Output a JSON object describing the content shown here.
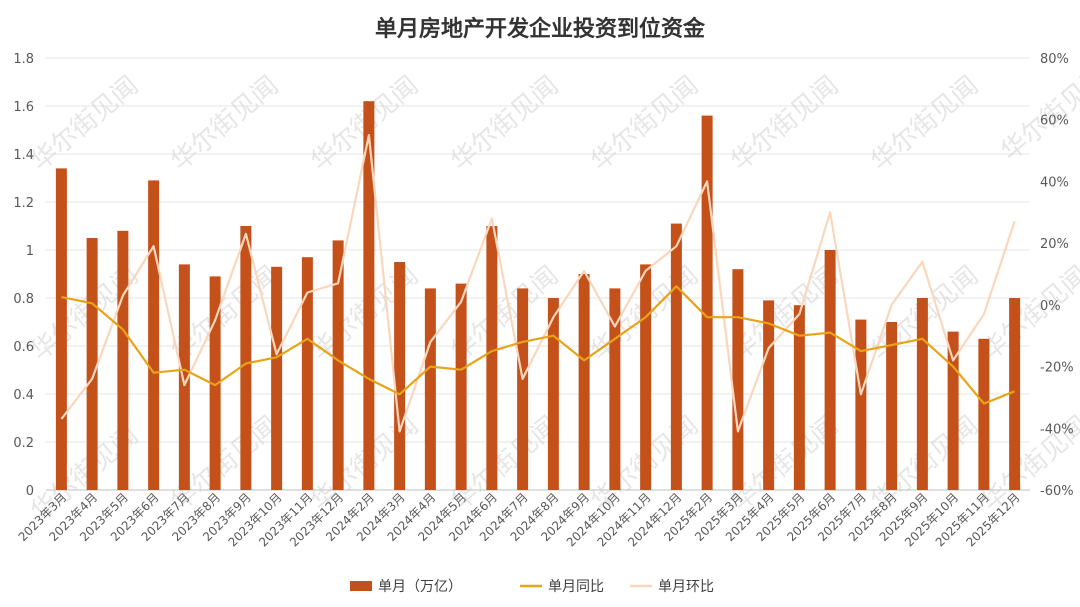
{
  "chart_data": {
    "type": "bar",
    "title": "单月房地产开发企业投资到位资金",
    "categories": [
      "2023年3月",
      "2023年4月",
      "2023年5月",
      "2023年6月",
      "2023年7月",
      "2023年8月",
      "2023年9月",
      "2023年10月",
      "2023年11月",
      "2023年12月",
      "2024年2月",
      "2024年3月",
      "2024年4月",
      "2024年5月",
      "2024年6月",
      "2024年7月",
      "2024年8月",
      "2024年9月",
      "2024年10月",
      "2024年11月",
      "2024年12月",
      "2025年2月",
      "2025年3月",
      "2025年4月",
      "2025年5月",
      "2025年6月",
      "2025年7月",
      "2025年8月",
      "2025年9月",
      "2025年10月",
      "2025年11月",
      "2025年12月"
    ],
    "series": [
      {
        "name": "单月（万亿）",
        "type": "bar",
        "axis": "left",
        "color": "#C4501A",
        "values": [
          1.34,
          1.05,
          1.08,
          1.29,
          0.94,
          0.89,
          1.1,
          0.93,
          0.97,
          1.04,
          1.62,
          0.95,
          0.84,
          0.86,
          1.1,
          0.84,
          0.8,
          0.9,
          0.84,
          0.94,
          1.11,
          1.56,
          0.92,
          0.79,
          0.77,
          1.0,
          0.71,
          0.7,
          0.8,
          0.66,
          0.63,
          0.8
        ]
      },
      {
        "name": "单月同比",
        "type": "line",
        "axis": "right",
        "color": "#E8A317",
        "values": [
          2.5,
          0.5,
          -8,
          -22,
          -21,
          -26,
          -19,
          -17,
          -11,
          -18,
          -24,
          -29,
          -20,
          -21,
          -15,
          -12,
          -10,
          -18,
          -11,
          -4,
          6,
          -4,
          -4,
          -6,
          -10,
          -9,
          -15,
          -13,
          -11,
          -20,
          -32,
          -28
        ]
      },
      {
        "name": "单月环比",
        "type": "line",
        "axis": "right",
        "color": "#FAD7BC",
        "values": [
          -37,
          -24,
          3,
          19,
          -26,
          -5,
          23,
          -16,
          4,
          7,
          55,
          -41,
          -12,
          1,
          28,
          -24,
          -4,
          11,
          -7,
          11,
          19,
          40,
          -41,
          -14,
          -3,
          30,
          -29,
          0,
          14,
          -18,
          -3,
          27
        ]
      }
    ],
    "ylim_left": [
      0,
      1.8
    ],
    "yticks_left": [
      "0",
      "0.2",
      "0.4",
      "0.6",
      "0.8",
      "1",
      "1.2",
      "1.4",
      "1.6",
      "1.8"
    ],
    "ylim_right": [
      -60,
      80
    ],
    "yticks_right": [
      "-60%",
      "-40%",
      "-20%",
      "0%",
      "20%",
      "40%",
      "60%",
      "80%"
    ],
    "grid": true,
    "legend_position": "bottom"
  },
  "watermark": "华尔街见闻"
}
